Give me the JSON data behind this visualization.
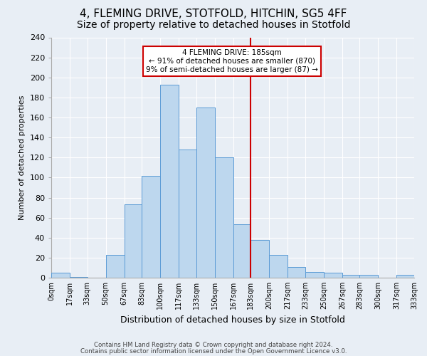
{
  "title1": "4, FLEMING DRIVE, STOTFOLD, HITCHIN, SG5 4FF",
  "title2": "Size of property relative to detached houses in Stotfold",
  "xlabel": "Distribution of detached houses by size in Stotfold",
  "ylabel": "Number of detached properties",
  "footer1": "Contains HM Land Registry data © Crown copyright and database right 2024.",
  "footer2": "Contains public sector information licensed under the Open Government Licence v3.0.",
  "annotation_line1": "4 FLEMING DRIVE: 185sqm",
  "annotation_line2": "← 91% of detached houses are smaller (870)",
  "annotation_line3": "9% of semi-detached houses are larger (87) →",
  "property_size": 185,
  "bin_edges": [
    0,
    17,
    33,
    50,
    67,
    83,
    100,
    117,
    133,
    150,
    167,
    183,
    200,
    217,
    233,
    250,
    267,
    283,
    300,
    317,
    333
  ],
  "bar_heights": [
    5,
    1,
    0,
    23,
    73,
    102,
    193,
    128,
    170,
    120,
    53,
    38,
    23,
    11,
    6,
    5,
    3,
    3,
    0,
    3
  ],
  "bar_color": "#bdd7ee",
  "bar_edge_color": "#5b9bd5",
  "vline_color": "#cc0000",
  "vline_x": 183,
  "xlim": [
    0,
    333
  ],
  "ylim": [
    0,
    240
  ],
  "yticks": [
    0,
    20,
    40,
    60,
    80,
    100,
    120,
    140,
    160,
    180,
    200,
    220,
    240
  ],
  "xtick_positions": [
    0,
    17,
    33,
    50,
    67,
    83,
    100,
    117,
    133,
    150,
    167,
    183,
    200,
    217,
    233,
    250,
    267,
    283,
    300,
    317,
    333
  ],
  "xtick_labels": [
    "0sqm",
    "17sqm",
    "33sqm",
    "50sqm",
    "67sqm",
    "83sqm",
    "100sqm",
    "117sqm",
    "133sqm",
    "150sqm",
    "167sqm",
    "183sqm",
    "200sqm",
    "217sqm",
    "233sqm",
    "250sqm",
    "267sqm",
    "283sqm",
    "300sqm",
    "317sqm",
    "333sqm"
  ],
  "bg_color": "#e8eef5",
  "grid_color": "#ffffff",
  "fig_bg_color": "#e8eef5",
  "annotation_box_edge": "#cc0000",
  "title1_fontsize": 11,
  "title2_fontsize": 10
}
